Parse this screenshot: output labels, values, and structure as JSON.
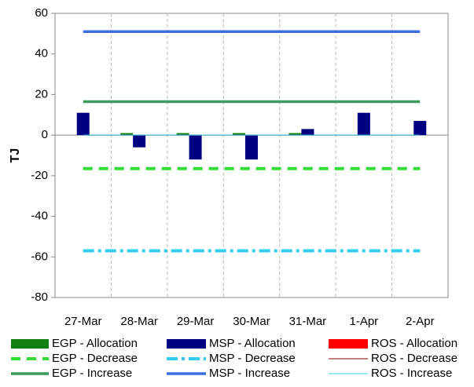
{
  "chart_data": {
    "type": "bar",
    "y_label": "TJ",
    "categories": [
      "27-Mar",
      "28-Mar",
      "29-Mar",
      "30-Mar",
      "31-Mar",
      "1-Apr",
      "2-Apr"
    ],
    "ylim": [
      -80,
      60
    ],
    "yticks": [
      -80,
      -60,
      -40,
      -20,
      0,
      20,
      40,
      60
    ],
    "grid": true,
    "series": [
      {
        "name": "EGP - Allocation",
        "type": "bar",
        "color": "#108010",
        "values": [
          0,
          1,
          1,
          1,
          1,
          0,
          0
        ]
      },
      {
        "name": "MSP - Allocation",
        "type": "bar",
        "color": "#000080",
        "values": [
          11,
          -6,
          -12,
          -12,
          3,
          11,
          7
        ]
      },
      {
        "name": "ROS - Allocation",
        "type": "bar",
        "color": "#ff0000",
        "values": [
          0,
          0,
          0,
          0,
          0,
          0,
          0
        ]
      },
      {
        "name": "EGP - Decrease",
        "type": "line",
        "dash": "dash",
        "color": "#33dd33",
        "values": [
          -16.5,
          -16.5,
          -16.5,
          -16.5,
          -16.5,
          -16.5,
          -16.5
        ]
      },
      {
        "name": "MSP - Decrease",
        "type": "line",
        "dash": "dashdot",
        "color": "#33ccee",
        "values": [
          -57,
          -57,
          -57,
          -57,
          -57,
          -57,
          -57
        ]
      },
      {
        "name": "ROS - Decrease",
        "type": "line",
        "dash": "thin",
        "color": "#800000",
        "values": [
          0,
          0,
          0,
          0,
          0,
          0,
          0
        ]
      },
      {
        "name": "EGP - Increase",
        "type": "line",
        "dash": "solid",
        "color": "#3c9a5c",
        "values": [
          16.5,
          16.5,
          16.5,
          16.5,
          16.5,
          16.5,
          16.5
        ]
      },
      {
        "name": "MSP - Increase",
        "type": "line",
        "dash": "solid",
        "color": "#3c6ee0",
        "values": [
          51,
          51,
          51,
          51,
          51,
          51,
          51
        ]
      },
      {
        "name": "ROS - Increase",
        "type": "line",
        "dash": "thin",
        "color": "#33ccee",
        "values": [
          0,
          0,
          0,
          0,
          0,
          0,
          0
        ]
      }
    ]
  }
}
